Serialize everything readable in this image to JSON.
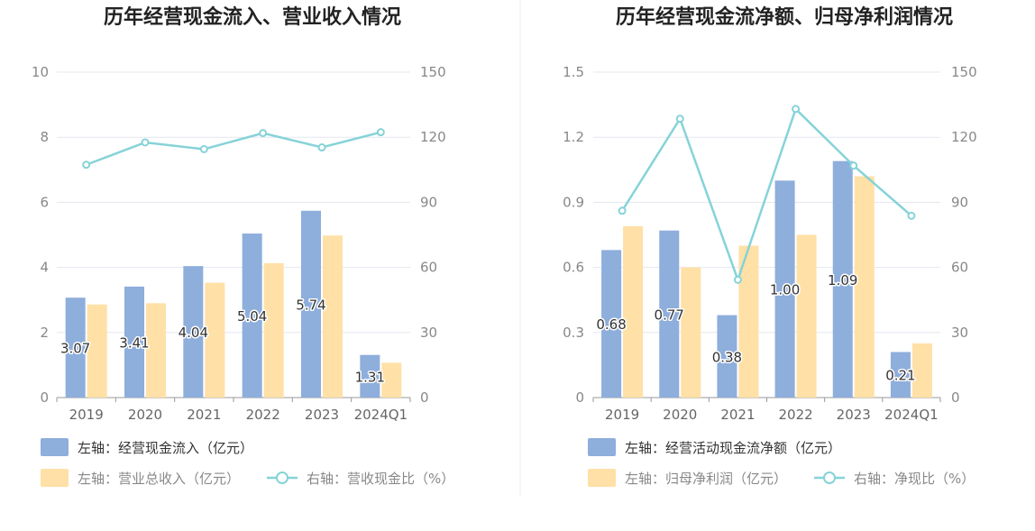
{
  "chart_data": [
    {
      "type": "bar",
      "title": "历年经营现金流入、营业收入情况",
      "categories": [
        "2019",
        "2020",
        "2021",
        "2022",
        "2023",
        "2024Q1"
      ],
      "y_left": {
        "ticks": [
          "0",
          "2",
          "4",
          "6",
          "8",
          "10"
        ],
        "ylim": [
          0,
          10
        ]
      },
      "y_right": {
        "ticks": [
          "0",
          "30",
          "60",
          "90",
          "120",
          "150"
        ],
        "ylim": [
          0,
          150
        ]
      },
      "series": [
        {
          "name": "左轴：经营现金流入（亿元）",
          "kind": "bar",
          "axis": "left",
          "color": "#8eaedc",
          "values": [
            3.07,
            3.41,
            4.04,
            5.04,
            5.74,
            1.31
          ],
          "labels": [
            "3.07",
            "3.41",
            "4.04",
            "5.04",
            "5.74",
            "1.31"
          ]
        },
        {
          "name": "左轴：营业总收入（亿元）",
          "kind": "bar",
          "axis": "left",
          "color": "#ffe0a6",
          "values": [
            2.86,
            2.9,
            3.53,
            4.13,
            4.98,
            1.07
          ]
        },
        {
          "name": "右轴：营收现金比（%）",
          "kind": "line",
          "axis": "right",
          "color": "#86d3d8",
          "values": [
            107.3,
            117.6,
            114.5,
            121.9,
            115.3,
            122.3
          ]
        }
      ],
      "grid": true,
      "legend": "bottom-left"
    },
    {
      "type": "bar",
      "title": "历年经营现金流净额、归母净利润情况",
      "categories": [
        "2019",
        "2020",
        "2021",
        "2022",
        "2023",
        "2024Q1"
      ],
      "y_left": {
        "ticks": [
          "0",
          "0.3",
          "0.6",
          "0.9",
          "1.2",
          "1.5"
        ],
        "ylim": [
          0,
          1.5
        ]
      },
      "y_right": {
        "ticks": [
          "0",
          "30",
          "60",
          "90",
          "120",
          "150"
        ],
        "ylim": [
          0,
          150
        ]
      },
      "series": [
        {
          "name": "左轴：经营活动现金流净额（亿元）",
          "kind": "bar",
          "axis": "left",
          "color": "#8eaedc",
          "values": [
            0.68,
            0.77,
            0.38,
            1.0,
            1.09,
            0.21
          ],
          "labels": [
            "0.68",
            "0.77",
            "0.38",
            "1.00",
            "1.09",
            "0.21"
          ]
        },
        {
          "name": "左轴：归母净利润（亿元）",
          "kind": "bar",
          "axis": "left",
          "color": "#ffe0a6",
          "values": [
            0.79,
            0.6,
            0.7,
            0.75,
            1.02,
            0.25
          ]
        },
        {
          "name": "右轴：净现比（%）",
          "kind": "line",
          "axis": "right",
          "color": "#86d3d8",
          "values": [
            86.1,
            128.5,
            54.3,
            133.0,
            106.9,
            83.8
          ]
        }
      ],
      "grid": true,
      "legend": "bottom-left"
    }
  ]
}
